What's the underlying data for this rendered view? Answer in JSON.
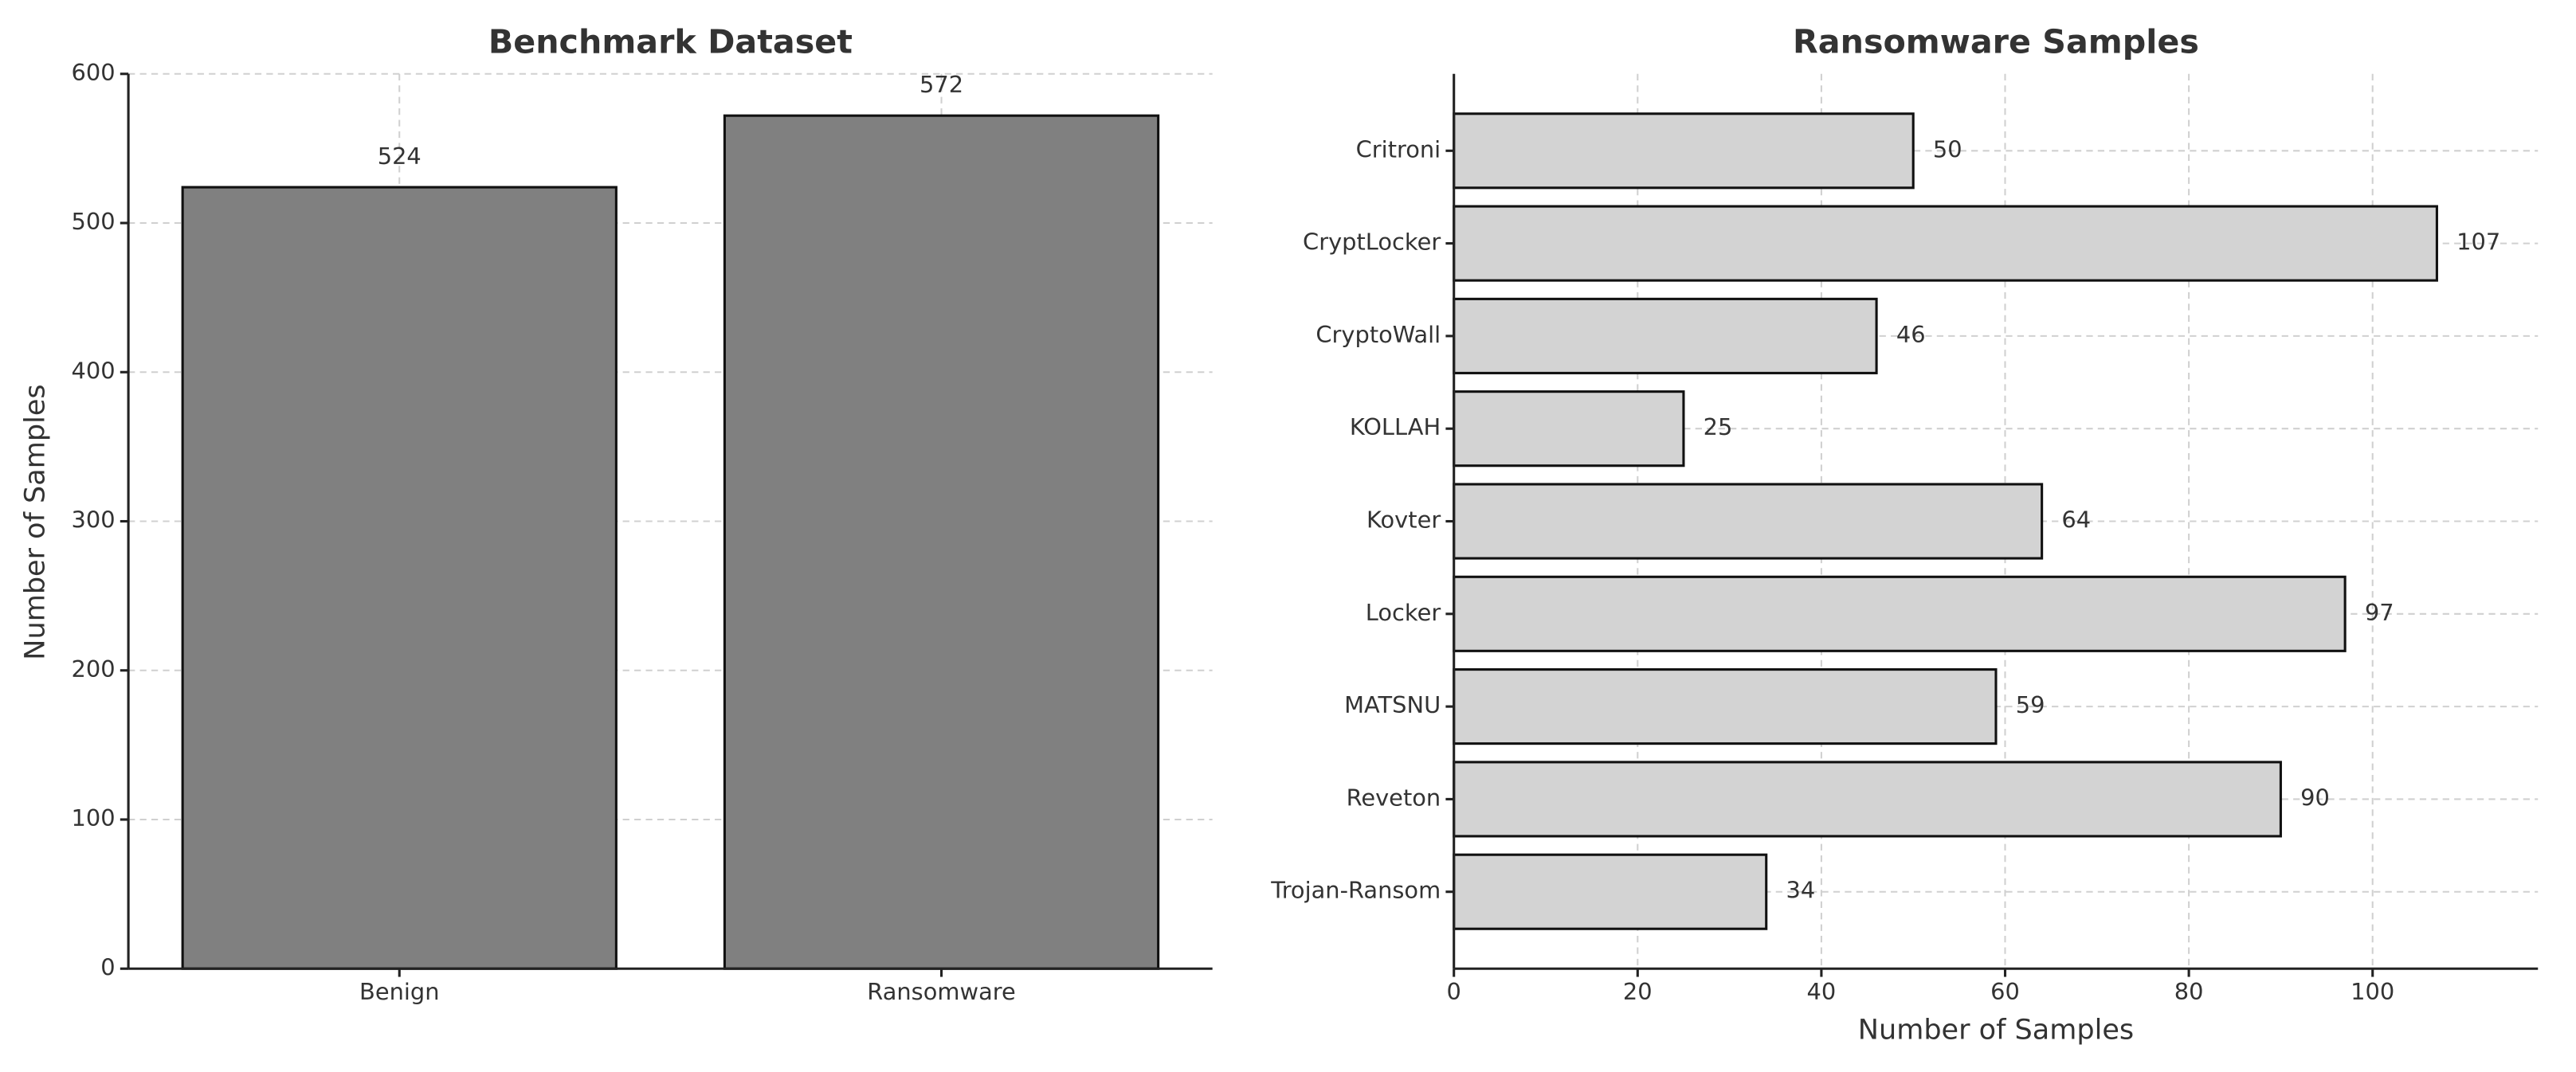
{
  "chart_data": [
    {
      "type": "bar",
      "title": "Benchmark Dataset",
      "ylabel": "Number of Samples",
      "categories": [
        "Benign",
        "Ransomware"
      ],
      "values": [
        524,
        572
      ],
      "color": "#808080",
      "ylim": [
        0,
        600
      ],
      "yticks": [
        0,
        100,
        200,
        300,
        400,
        500,
        600
      ],
      "grid": true
    },
    {
      "type": "barh",
      "title": "Ransomware Samples",
      "xlabel": "Number of Samples",
      "categories": [
        "Critroni",
        "CryptLocker",
        "CryptoWall",
        "KOLLAH",
        "Kovter",
        "Locker",
        "MATSNU",
        "Reveton",
        "Trojan-Ransom"
      ],
      "values": [
        50,
        107,
        46,
        25,
        64,
        97,
        59,
        90,
        34
      ],
      "color": "#d3d3d3",
      "xlim": [
        0,
        118
      ],
      "xticks": [
        0,
        20,
        40,
        60,
        80,
        100
      ],
      "grid": true
    }
  ]
}
